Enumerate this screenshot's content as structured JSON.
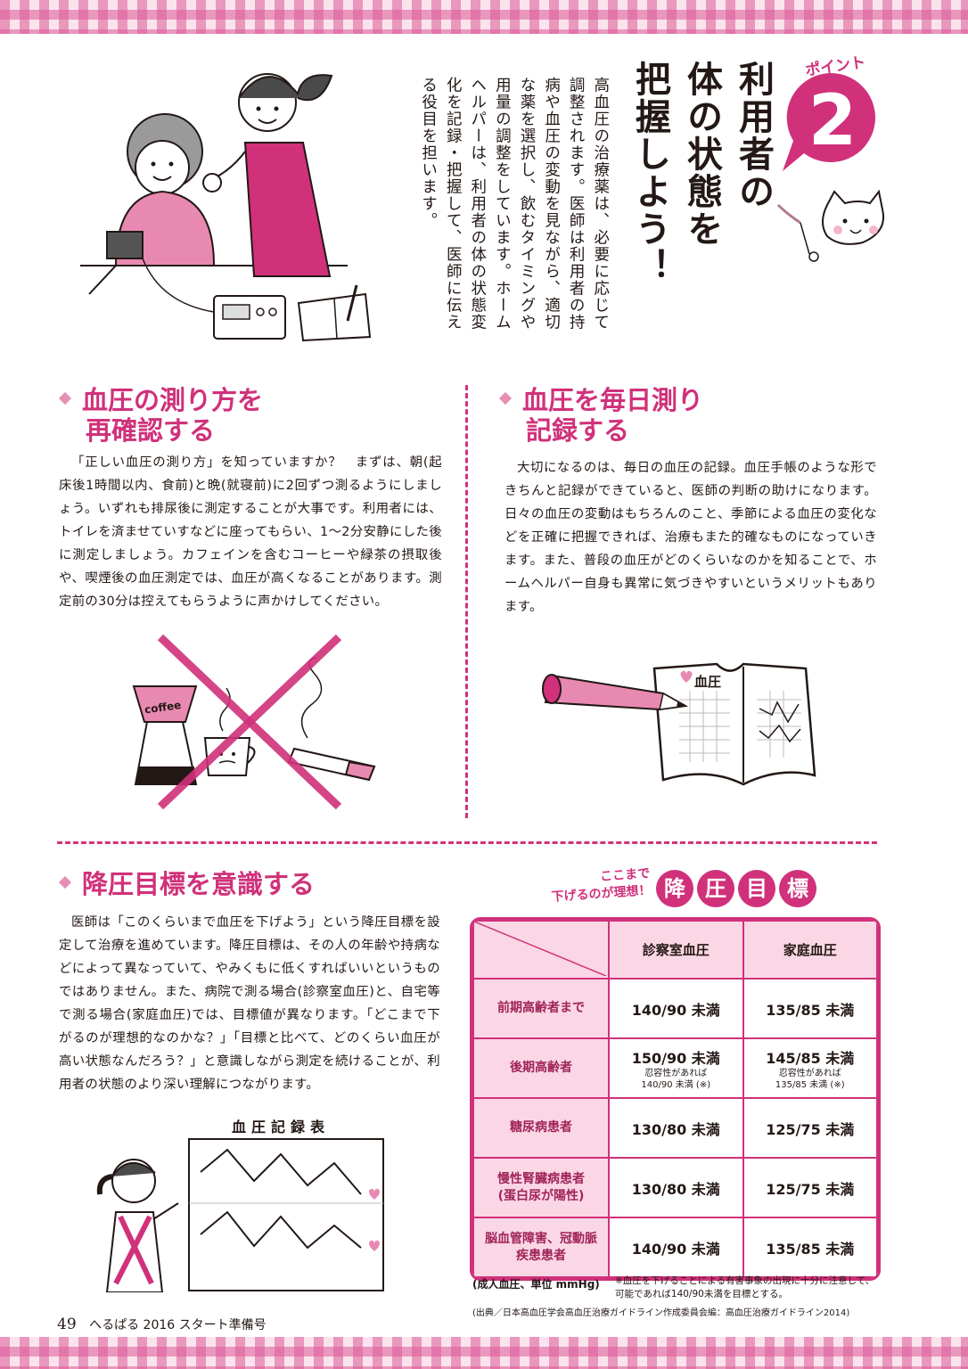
{
  "header": {
    "point_label": "ポイント",
    "point_number": "2",
    "title_lines": [
      "利用者の",
      "体の状態を",
      "把握しよう！"
    ]
  },
  "intro": {
    "text": "高血圧の治療薬は、必要に応じて調整されます。医師は利用者の持病や血圧の変動を見ながら、適切な薬を選択し、飲むタイミングや用量の調整をしています。ホームヘルパーは、利用者の体の状態変化を記録・把握して、医師に伝える役目を担います。"
  },
  "section1": {
    "title_line1": "血圧の測り方を",
    "title_line2": "再確認する",
    "body": "「正しい血圧の測り方」を知っていますか？　まずは、朝(起床後1時間以内、食前)と晩(就寝前)に2回ずつ測るようにしましょう。いずれも排尿後に測定することが大事です。利用者には、トイレを済ませていすなどに座ってもらい、1～2分安静にした後に測定しましょう。カフェインを含むコーヒーや緑茶の摂取後や、喫煙後の血圧測定では、血圧が高くなることがあります。測定前の30分は控えてもらうように声かけしてください。",
    "coffee_label": "coffee"
  },
  "section2": {
    "title_line1": "血圧を毎日測り",
    "title_line2": "記録する",
    "body": "大切になるのは、毎日の血圧の記録。血圧手帳のような形できちんと記録ができていると、医師の判断の助けになります。日々の血圧の変動はもちろんのこと、季節による血圧の変化などを正確に把握できれば、治療もまた的確なものになっていきます。また、普段の血圧がどのくらいなのかを知ることで、ホームヘルパー自身も異常に気づきやすいというメリットもあります。",
    "notebook_label": "血圧"
  },
  "section3": {
    "title": "降圧目標を意識する",
    "body": "医師は「このくらいまで血圧を下げよう」という降圧目標を設定して治療を進めています。降圧目標は、その人の年齢や持病などによって異なっていて、やみくもに低くすればいいというものではありません。また、病院で測る場合(診察室血圧)と、自宅等で測る場合(家庭血圧)では、目標値が異なります。「どこまで下がるのが理想的なのかな？」「目標と比べて、どのくらい血圧が高い状態なんだろう？」と意識しながら測定を続けることが、利用者の状態のより深い理解につながります。",
    "chart_title": "血圧記録表"
  },
  "target": {
    "caption_line1": "ここまで",
    "caption_line2": "下げるのが理想！",
    "tag_chars": [
      "降",
      "圧",
      "目",
      "標"
    ],
    "col_headers": [
      "診察室血圧",
      "家庭血圧"
    ],
    "rows": [
      {
        "label": "前期高齢者まで",
        "clinic": "140/90 未満",
        "clinic_note": "",
        "home": "135/85 未満",
        "home_note": ""
      },
      {
        "label": "後期高齢者",
        "clinic": "150/90 未満",
        "clinic_note": "忍容性があれば\n140/90 未満 (※)",
        "home": "145/85 未満",
        "home_note": "忍容性があれば\n135/85 未満 (※)"
      },
      {
        "label": "糖尿病患者",
        "clinic": "130/80 未満",
        "clinic_note": "",
        "home": "125/75 未満",
        "home_note": ""
      },
      {
        "label": "慢性腎臓病患者\n(蛋白尿が陽性)",
        "clinic": "130/80 未満",
        "clinic_note": "",
        "home": "125/75 未満",
        "home_note": ""
      },
      {
        "label": "脳血管障害、冠動脈\n疾患患者",
        "clinic": "140/90 未満",
        "clinic_note": "",
        "home": "135/85 未満",
        "home_note": ""
      }
    ],
    "unit_note": "(成人血圧、単位 mmHg)",
    "asterisk_note": "※血圧を下げることによる有害事象の出現に十分に注意して、可能であれば140/90未満を目標とする。",
    "source": "(出典／日本高血圧学会高血圧治療ガイドライン作成委員会編：高血圧治療ガイドライン2014)"
  },
  "footer": {
    "page_number": "49",
    "magazine": "へるぱる 2016 スタート準備号"
  },
  "colors": {
    "accent": "#d0317a",
    "light_pink": "#fbd7e5"
  }
}
